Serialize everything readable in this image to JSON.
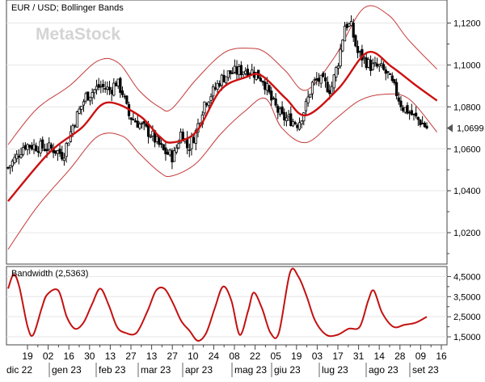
{
  "chart_data": [
    {
      "type": "candlestick",
      "title": "EUR / USD; Bollinger Bands",
      "watermark": "MetaStock",
      "ylim": [
        1.005,
        1.131
      ],
      "yticks": [
        1.02,
        1.04,
        1.06,
        1.08,
        1.1,
        1.12
      ],
      "yticklabels": [
        "1,0200",
        "1,0400",
        "1,0600",
        "1,0800",
        "1,1000",
        "1,1200"
      ],
      "last_price_label": "1,0699",
      "last_price": 1.0699,
      "x": {
        "day_labels": [
          "19",
          "02",
          "16",
          "30",
          "13",
          "27",
          "13",
          "27",
          "10",
          "24",
          "08",
          "22",
          "05",
          "19",
          "03",
          "17",
          "31",
          "14",
          "28",
          "09",
          "16"
        ],
        "month_labels": [
          "dic 22",
          "gen 23",
          "feb 23",
          "mar 23",
          "apr 23",
          "mag 23",
          "giu 23",
          "lug 23",
          "ago 23",
          "set 23"
        ],
        "bar_count": 195
      },
      "close_anchors": [
        [
          0,
          1.051
        ],
        [
          4,
          1.056
        ],
        [
          8,
          1.062
        ],
        [
          15,
          1.061
        ],
        [
          22,
          1.06
        ],
        [
          27,
          1.057
        ],
        [
          32,
          1.072
        ],
        [
          38,
          1.085
        ],
        [
          45,
          1.09
        ],
        [
          50,
          1.088
        ],
        [
          53,
          1.092
        ],
        [
          56,
          1.087
        ],
        [
          59,
          1.076
        ],
        [
          64,
          1.072
        ],
        [
          70,
          1.067
        ],
        [
          76,
          1.059
        ],
        [
          81,
          1.056
        ],
        [
          85,
          1.069
        ],
        [
          88,
          1.06
        ],
        [
          92,
          1.068
        ],
        [
          96,
          1.082
        ],
        [
          101,
          1.088
        ],
        [
          104,
          1.093
        ],
        [
          108,
          1.096
        ],
        [
          113,
          1.097
        ],
        [
          117,
          1.098
        ],
        [
          121,
          1.096
        ],
        [
          125,
          1.093
        ],
        [
          129,
          1.083
        ],
        [
          134,
          1.075
        ],
        [
          138,
          1.074
        ],
        [
          142,
          1.072
        ],
        [
          146,
          1.081
        ],
        [
          149,
          1.091
        ],
        [
          152,
          1.093
        ],
        [
          155,
          1.091
        ],
        [
          158,
          1.088
        ],
        [
          162,
          1.103
        ],
        [
          165,
          1.12
        ],
        [
          168,
          1.118
        ],
        [
          171,
          1.106
        ],
        [
          174,
          1.103
        ],
        [
          178,
          1.099
        ],
        [
          182,
          1.099
        ],
        [
          186,
          1.095
        ],
        [
          190,
          1.087
        ],
        [
          193,
          1.08
        ],
        [
          196,
          1.078
        ],
        [
          199,
          1.075
        ],
        [
          202,
          1.073
        ],
        [
          205,
          1.07
        ]
      ],
      "sma_anchors": [
        [
          0,
          1.035
        ],
        [
          20,
          1.058
        ],
        [
          36,
          1.07
        ],
        [
          48,
          1.082
        ],
        [
          64,
          1.076
        ],
        [
          74,
          1.066
        ],
        [
          80,
          1.063
        ],
        [
          92,
          1.068
        ],
        [
          104,
          1.088
        ],
        [
          116,
          1.094
        ],
        [
          124,
          1.095
        ],
        [
          136,
          1.084
        ],
        [
          146,
          1.076
        ],
        [
          162,
          1.089
        ],
        [
          176,
          1.106
        ],
        [
          188,
          1.099
        ],
        [
          200,
          1.09
        ],
        [
          210,
          1.083
        ]
      ],
      "upper_anchors": [
        [
          0,
          1.062
        ],
        [
          14,
          1.079
        ],
        [
          30,
          1.09
        ],
        [
          44,
          1.102
        ],
        [
          54,
          1.101
        ],
        [
          64,
          1.088
        ],
        [
          74,
          1.08
        ],
        [
          80,
          1.079
        ],
        [
          92,
          1.093
        ],
        [
          106,
          1.106
        ],
        [
          118,
          1.108
        ],
        [
          126,
          1.106
        ],
        [
          136,
          1.097
        ],
        [
          146,
          1.088
        ],
        [
          160,
          1.104
        ],
        [
          174,
          1.127
        ],
        [
          186,
          1.124
        ],
        [
          196,
          1.112
        ],
        [
          210,
          1.098
        ]
      ],
      "lower_anchors": [
        [
          0,
          1.012
        ],
        [
          14,
          1.032
        ],
        [
          30,
          1.05
        ],
        [
          44,
          1.066
        ],
        [
          56,
          1.066
        ],
        [
          64,
          1.058
        ],
        [
          74,
          1.049
        ],
        [
          80,
          1.047
        ],
        [
          92,
          1.053
        ],
        [
          104,
          1.067
        ],
        [
          116,
          1.078
        ],
        [
          126,
          1.084
        ],
        [
          134,
          1.07
        ],
        [
          146,
          1.063
        ],
        [
          160,
          1.074
        ],
        [
          172,
          1.083
        ],
        [
          184,
          1.086
        ],
        [
          196,
          1.084
        ],
        [
          210,
          1.068
        ]
      ]
    },
    {
      "type": "line",
      "title": "Bandwidth (2,5363)",
      "ylim": [
        1.1,
        5.0
      ],
      "yticks": [
        1.5,
        2.5,
        3.5,
        4.5
      ],
      "yticklabels": [
        "1,5000",
        "2,5000",
        "3,5000",
        "4,5000"
      ],
      "anchors": [
        [
          0,
          3.9
        ],
        [
          4,
          4.6
        ],
        [
          8,
          4.0
        ],
        [
          14,
          2.0
        ],
        [
          18,
          1.6
        ],
        [
          24,
          2.9
        ],
        [
          28,
          3.6
        ],
        [
          36,
          3.8
        ],
        [
          42,
          2.5
        ],
        [
          48,
          1.9
        ],
        [
          54,
          2.2
        ],
        [
          60,
          3.1
        ],
        [
          66,
          3.9
        ],
        [
          72,
          3.1
        ],
        [
          78,
          2.0
        ],
        [
          84,
          1.7
        ],
        [
          92,
          1.7
        ],
        [
          100,
          2.8
        ],
        [
          106,
          3.8
        ],
        [
          112,
          3.9
        ],
        [
          118,
          3.2
        ],
        [
          124,
          2.3
        ],
        [
          130,
          1.8
        ],
        [
          136,
          1.3
        ],
        [
          142,
          1.7
        ],
        [
          148,
          2.9
        ],
        [
          154,
          4.0
        ],
        [
          160,
          3.3
        ],
        [
          166,
          1.6
        ],
        [
          172,
          2.8
        ],
        [
          176,
          3.7
        ],
        [
          182,
          2.9
        ],
        [
          188,
          1.7
        ],
        [
          194,
          1.7
        ],
        [
          202,
          4.7
        ],
        [
          208,
          4.5
        ],
        [
          214,
          3.5
        ],
        [
          220,
          2.3
        ],
        [
          228,
          1.6
        ],
        [
          236,
          1.6
        ],
        [
          244,
          1.9
        ],
        [
          252,
          2.0
        ],
        [
          258,
          3.3
        ],
        [
          262,
          3.8
        ],
        [
          268,
          2.7
        ],
        [
          276,
          2.0
        ],
        [
          284,
          2.1
        ],
        [
          292,
          2.2
        ],
        [
          300,
          2.5
        ]
      ]
    }
  ]
}
